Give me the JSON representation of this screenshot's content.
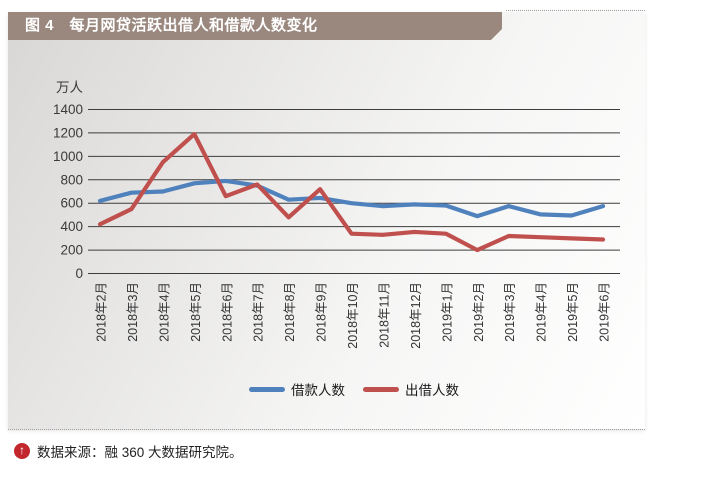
{
  "header": {
    "title": "图 4　每月网贷活跃出借人和借款人数变化"
  },
  "colors": {
    "header_bg": "#9a887f",
    "grid": "#3d3d3d",
    "tick_text": "#3a3a3a",
    "borrowers_line": "#4f81bd",
    "lenders_line": "#c0504d",
    "footer_icon_bg": "#c1272d"
  },
  "chart_data": {
    "type": "line",
    "unit_label": "万人",
    "categories": [
      "2018年2月",
      "2018年3月",
      "2018年4月",
      "2018年5月",
      "2018年6月",
      "2018年7月",
      "2018年8月",
      "2018年9月",
      "2018年10月",
      "2018年11月",
      "2018年12月",
      "2019年1月",
      "2019年2月",
      "2019年3月",
      "2019年4月",
      "2019年5月",
      "2019年6月"
    ],
    "series": [
      {
        "name": "借款人数",
        "color": "#4f81bd",
        "values": [
          620,
          690,
          700,
          770,
          790,
          750,
          630,
          645,
          600,
          575,
          590,
          580,
          490,
          575,
          505,
          495,
          575
        ]
      },
      {
        "name": "出借人数",
        "color": "#c0504d",
        "values": [
          420,
          550,
          950,
          1190,
          660,
          760,
          480,
          720,
          340,
          330,
          355,
          340,
          200,
          320,
          310,
          300,
          290
        ]
      }
    ],
    "ylim": [
      0,
      1400
    ],
    "ytick_step": 200,
    "grid": true,
    "legend_position": "bottom"
  },
  "footer": {
    "icon": "up-arrow",
    "source_text": "数据来源：融 360 大数据研究院。"
  }
}
